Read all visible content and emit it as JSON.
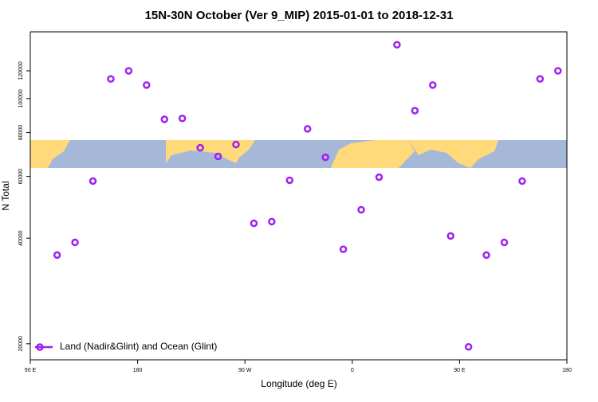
{
  "chart_data": {
    "type": "scatter",
    "title": "15N-30N October (Ver 9_MIP)   2015-01-01 to 2018-12-31",
    "xlabel": "Longitude (deg E)",
    "ylabel": "N Total",
    "log_y": true,
    "xlim": [
      90,
      540
    ],
    "ylim": [
      18000,
      155000
    ],
    "xticks": [
      {
        "value": 90,
        "label": "90 E"
      },
      180,
      {
        "value": 270,
        "label": "90 W"
      },
      {
        "value": 360,
        "label": "0"
      },
      {
        "value": 450,
        "label": "90 E"
      },
      {
        "value": 540,
        "label": "180"
      }
    ],
    "yticks": [
      20000,
      40000,
      60000,
      80000,
      100000,
      120000
    ],
    "legend": "bottom-left",
    "series": [
      {
        "name": "Land (Nadir&Glint) and Ocean (Glint)",
        "color": "#a020f0",
        "x": [
          112.5,
          127.5,
          142.5,
          157.5,
          172.5,
          187.5,
          202.5,
          217.5,
          232.5,
          247.5,
          262.5,
          277.5,
          292.5,
          307.5,
          322.5,
          337.5,
          352.5,
          367.5,
          382.5,
          397.5,
          412.5,
          427.5,
          442.5,
          457.5,
          472.5,
          487.5,
          502.5,
          517.5,
          532.5
        ],
        "values": [
          35800,
          38900,
          58200,
          113800,
          120000,
          109300,
          87300,
          87800,
          72400,
          68400,
          74000,
          44100,
          44600,
          58500,
          82000,
          68000,
          37200,
          48200,
          59700,
          142400,
          92400,
          109300,
          40600,
          19600,
          35800,
          38900,
          58200,
          113800,
          120000
        ]
      }
    ]
  }
}
